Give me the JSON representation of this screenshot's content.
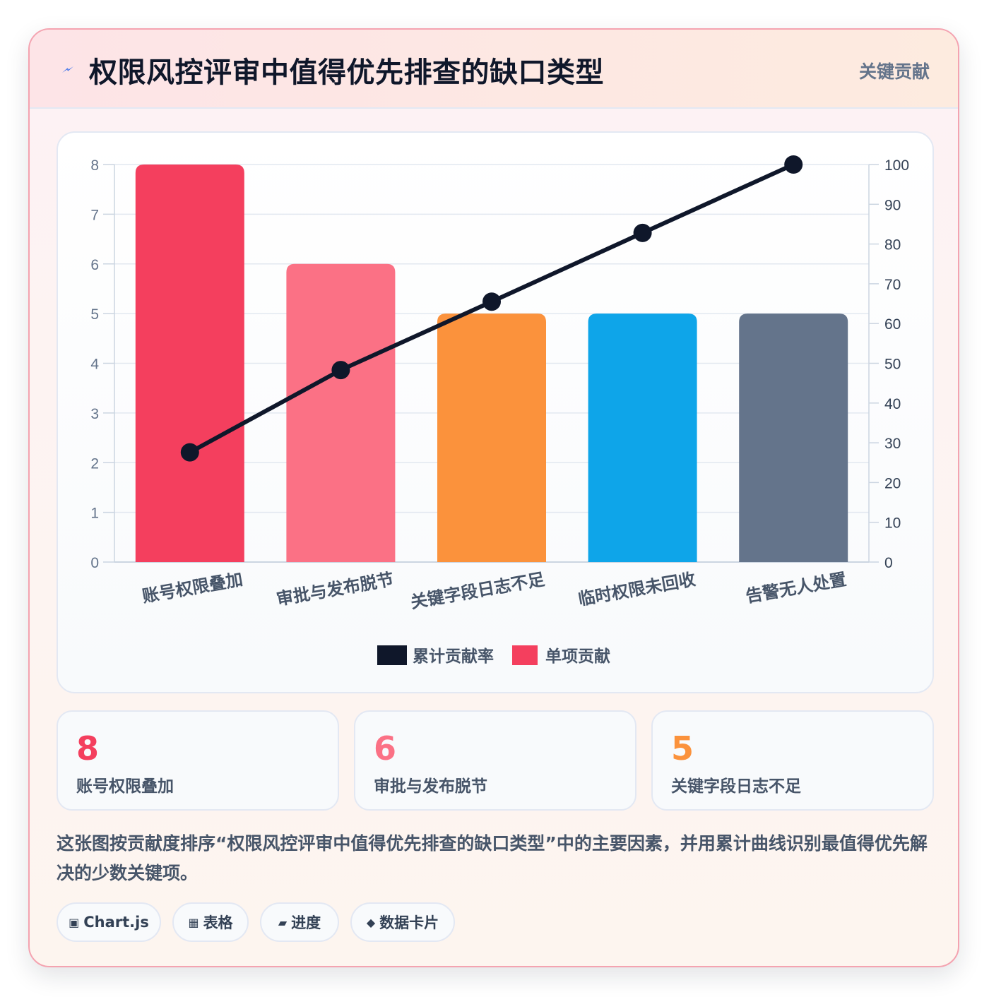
{
  "header": {
    "title": "权限风控评审中值得优先排查的缺口类型",
    "tag": "关键贡献",
    "icon": "lightning-icon"
  },
  "colors": {
    "bars": [
      "#f43f5e",
      "#fb7185",
      "#fb923c",
      "#0ea5e9",
      "#64748b"
    ],
    "line": "#0f172a"
  },
  "chart_data": {
    "type": "bar",
    "categories": [
      "账号权限叠加",
      "审批与发布脱节",
      "关键字段日志不足",
      "临时权限未回收",
      "告警无人处置"
    ],
    "series": [
      {
        "name": "单项贡献",
        "type": "bar",
        "axis": "left",
        "values": [
          8,
          6,
          5,
          5,
          5
        ]
      },
      {
        "name": "累计贡献率",
        "type": "line",
        "axis": "right",
        "values": [
          27.6,
          48.3,
          65.5,
          82.8,
          100
        ]
      }
    ],
    "y_left": {
      "min": 0,
      "max": 8,
      "ticks": [
        0,
        1,
        2,
        3,
        4,
        5,
        6,
        7,
        8
      ]
    },
    "y_right": {
      "min": 0,
      "max": 100,
      "ticks": [
        0,
        10,
        20,
        30,
        40,
        50,
        60,
        70,
        80,
        90,
        100
      ]
    },
    "legend": [
      "累计贡献率",
      "单项贡献"
    ],
    "legend_position": "bottom",
    "grid": true
  },
  "stats": [
    {
      "value": "8",
      "label": "账号权限叠加",
      "color": "#f43f5e"
    },
    {
      "value": "6",
      "label": "审批与发布脱节",
      "color": "#fb7185"
    },
    {
      "value": "5",
      "label": "关键字段日志不足",
      "color": "#fb923c"
    }
  ],
  "description": "这张图按贡献度排序“权限风控评审中值得优先排查的缺口类型”中的主要因素，并用累计曲线识别最值得优先解决的少数关键项。",
  "chips": [
    {
      "icon": "▣",
      "icon_name": "chart-icon",
      "label": "Chart.js"
    },
    {
      "icon": "▦",
      "icon_name": "table-icon",
      "label": "表格"
    },
    {
      "icon": "▰",
      "icon_name": "progress-icon",
      "label": "进度"
    },
    {
      "icon": "◆",
      "icon_name": "data-card-icon",
      "label": "数据卡片"
    }
  ]
}
